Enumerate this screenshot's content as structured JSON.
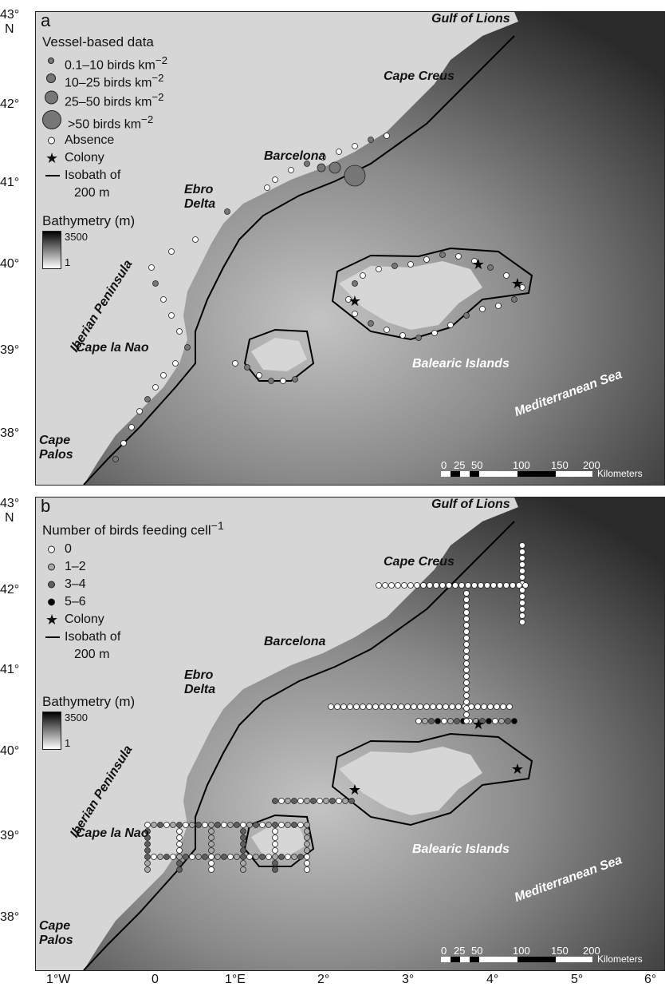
{
  "axes": {
    "y_ticks_a": [
      {
        "label": "43°",
        "sub": "N"
      },
      {
        "label": "42°"
      },
      {
        "label": "41°"
      },
      {
        "label": "40°"
      },
      {
        "label": "39°"
      },
      {
        "label": "38°"
      }
    ],
    "y_ticks_b": [
      {
        "label": "43°",
        "sub": "N"
      },
      {
        "label": "42°"
      },
      {
        "label": "41°"
      },
      {
        "label": "40°"
      },
      {
        "label": "39°"
      },
      {
        "label": "38°"
      }
    ],
    "x_ticks": [
      "1°W",
      "0",
      "1°E",
      "2°",
      "3°",
      "4°",
      "5°",
      "6°"
    ]
  },
  "panel_a": {
    "letter": "a",
    "legend": {
      "title": "Vessel-based data",
      "items": [
        {
          "text": "0.1–10 birds km",
          "sup": "−2"
        },
        {
          "text": "10–25 birds km",
          "sup": "−2"
        },
        {
          "text": "25–50 birds km",
          "sup": "−2"
        },
        {
          "text": ">50 birds km",
          "sup": "−2"
        },
        {
          "text": "Absence"
        },
        {
          "text": "Colony"
        },
        {
          "text": "Isobath of"
        },
        {
          "text": "200 m"
        }
      ],
      "bathymetry_title": "Bathymetry (m)",
      "bath_max": "3500",
      "bath_min": "1"
    },
    "places": {
      "gulf": "Gulf of Lions",
      "creus": "Cape Creus",
      "barcelona": "Barcelona",
      "ebro1": "Ebro",
      "ebro2": "Delta",
      "iberian": "Iberian Peninsula",
      "nao": "Cape la Nao",
      "palos1": "Cape",
      "palos2": "Palos",
      "balearic": "Balearic Islands",
      "med": "Mediterranean Sea"
    }
  },
  "panel_b": {
    "letter": "b",
    "legend": {
      "title": "Number of birds feeding cell",
      "title_sup": "−1",
      "items": [
        {
          "text": "0",
          "color": "#ffffff"
        },
        {
          "text": "1–2",
          "color": "#a9a9a9"
        },
        {
          "text": "3–4",
          "color": "#5f5f5f"
        },
        {
          "text": "5–6",
          "color": "#000000"
        },
        {
          "text": "Colony"
        },
        {
          "text": "Isobath of"
        },
        {
          "text": "200 m"
        }
      ],
      "bathymetry_title": "Bathymetry (m)",
      "bath_max": "3500",
      "bath_min": "1"
    },
    "places": {
      "gulf": "Gulf of Lions",
      "creus": "Cape Creus",
      "barcelona": "Barcelona",
      "ebro1": "Ebro",
      "ebro2": "Delta",
      "iberian": "Iberian Peninsula",
      "nao": "Cape la Nao",
      "palos1": "Cape",
      "palos2": "Palos",
      "balearic": "Balearic Islands",
      "med": "Mediterranean Sea"
    }
  },
  "scale": {
    "labels": [
      "0",
      "25",
      "50",
      "100",
      "150",
      "200"
    ],
    "unit": "Kilometers"
  },
  "colors": {
    "land": "#d6d6d6",
    "deep_sea": "#2e2e2e",
    "shallow_sea": "#cfcfcf",
    "isobath": "#000000"
  }
}
